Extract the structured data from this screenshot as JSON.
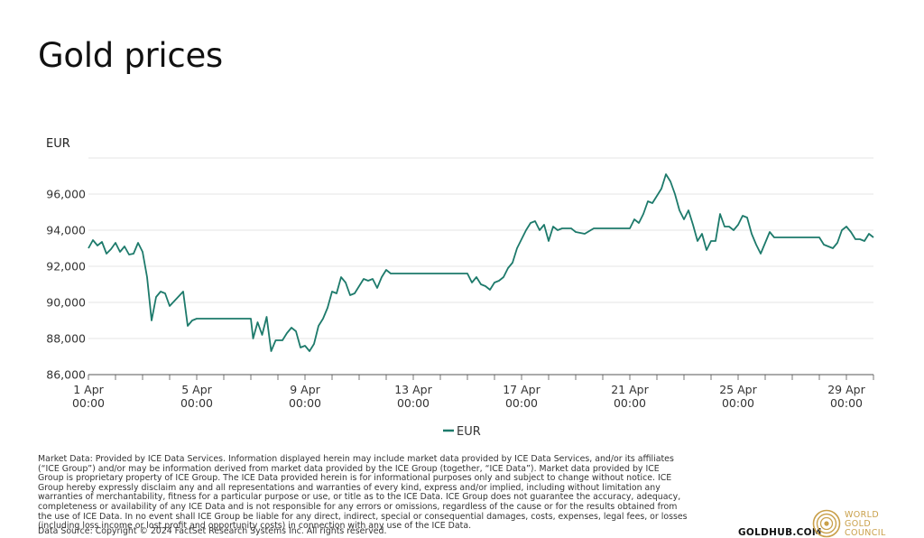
{
  "header": {
    "title": "Gold prices"
  },
  "chart_data": {
    "type": "line",
    "ylabel": "EUR",
    "ylim": [
      86000,
      98000
    ],
    "y_ticks": [
      "86,000",
      "88,000",
      "90,000",
      "92,000",
      "94,000",
      "96,000"
    ],
    "x_ticks": [
      {
        "day": "1 Apr",
        "time": "00:00"
      },
      {
        "day": "5 Apr",
        "time": "00:00"
      },
      {
        "day": "9 Apr",
        "time": "00:00"
      },
      {
        "day": "13 Apr",
        "time": "00:00"
      },
      {
        "day": "17 Apr",
        "time": "00:00"
      },
      {
        "day": "21 Apr",
        "time": "00:00"
      },
      {
        "day": "25 Apr",
        "time": "00:00"
      },
      {
        "day": "29 Apr",
        "time": "00:00"
      }
    ],
    "legend": "bottom-center",
    "grid": "horizontal",
    "series": [
      {
        "name": "EUR",
        "color": "#1d7a6b",
        "points": [
          [
            "2024-04-01 00:00",
            93000
          ],
          [
            "2024-04-01 04:00",
            93450
          ],
          [
            "2024-04-01 08:00",
            93150
          ],
          [
            "2024-04-01 12:00",
            93350
          ],
          [
            "2024-04-01 16:00",
            92700
          ],
          [
            "2024-04-01 20:00",
            92950
          ],
          [
            "2024-04-02 00:00",
            93300
          ],
          [
            "2024-04-02 04:00",
            92800
          ],
          [
            "2024-04-02 08:00",
            93100
          ],
          [
            "2024-04-02 12:00",
            92650
          ],
          [
            "2024-04-02 16:00",
            92700
          ],
          [
            "2024-04-02 20:00",
            93300
          ],
          [
            "2024-04-03 00:00",
            92800
          ],
          [
            "2024-04-03 04:00",
            91400
          ],
          [
            "2024-04-03 08:00",
            89000
          ],
          [
            "2024-04-03 12:00",
            90300
          ],
          [
            "2024-04-03 16:00",
            90600
          ],
          [
            "2024-04-03 20:00",
            90500
          ],
          [
            "2024-04-04 00:00",
            89800
          ],
          [
            "2024-04-04 06:00",
            90200
          ],
          [
            "2024-04-04 12:00",
            90600
          ],
          [
            "2024-04-04 16:00",
            88700
          ],
          [
            "2024-04-04 20:00",
            89000
          ],
          [
            "2024-04-05 00:00",
            89100
          ],
          [
            "2024-04-06 00:00",
            89100
          ],
          [
            "2024-04-07 00:00",
            89100
          ],
          [
            "2024-04-07 02:00",
            88000
          ],
          [
            "2024-04-07 06:00",
            88900
          ],
          [
            "2024-04-07 10:00",
            88200
          ],
          [
            "2024-04-07 14:00",
            89200
          ],
          [
            "2024-04-07 18:00",
            87300
          ],
          [
            "2024-04-07 22:00",
            87900
          ],
          [
            "2024-04-08 04:00",
            87900
          ],
          [
            "2024-04-08 08:00",
            88300
          ],
          [
            "2024-04-08 12:00",
            88600
          ],
          [
            "2024-04-08 16:00",
            88400
          ],
          [
            "2024-04-08 20:00",
            87500
          ],
          [
            "2024-04-09 00:00",
            87600
          ],
          [
            "2024-04-09 04:00",
            87300
          ],
          [
            "2024-04-09 08:00",
            87700
          ],
          [
            "2024-04-09 12:00",
            88700
          ],
          [
            "2024-04-09 16:00",
            89100
          ],
          [
            "2024-04-09 20:00",
            89700
          ],
          [
            "2024-04-10 00:00",
            90600
          ],
          [
            "2024-04-10 04:00",
            90500
          ],
          [
            "2024-04-10 08:00",
            91400
          ],
          [
            "2024-04-10 12:00",
            91100
          ],
          [
            "2024-04-10 16:00",
            90400
          ],
          [
            "2024-04-10 20:00",
            90500
          ],
          [
            "2024-04-11 00:00",
            90900
          ],
          [
            "2024-04-11 04:00",
            91300
          ],
          [
            "2024-04-11 08:00",
            91200
          ],
          [
            "2024-04-11 12:00",
            91300
          ],
          [
            "2024-04-11 16:00",
            90800
          ],
          [
            "2024-04-11 20:00",
            91400
          ],
          [
            "2024-04-12 00:00",
            91800
          ],
          [
            "2024-04-12 04:00",
            91600
          ],
          [
            "2024-04-13 00:00",
            91600
          ],
          [
            "2024-04-14 00:00",
            91600
          ],
          [
            "2024-04-15 00:00",
            91600
          ],
          [
            "2024-04-15 04:00",
            91100
          ],
          [
            "2024-04-15 08:00",
            91400
          ],
          [
            "2024-04-15 12:00",
            91000
          ],
          [
            "2024-04-15 16:00",
            90900
          ],
          [
            "2024-04-15 20:00",
            90700
          ],
          [
            "2024-04-16 00:00",
            91100
          ],
          [
            "2024-04-16 04:00",
            91200
          ],
          [
            "2024-04-16 08:00",
            91400
          ],
          [
            "2024-04-16 12:00",
            91900
          ],
          [
            "2024-04-16 16:00",
            92200
          ],
          [
            "2024-04-16 20:00",
            93000
          ],
          [
            "2024-04-17 00:00",
            93500
          ],
          [
            "2024-04-17 04:00",
            94000
          ],
          [
            "2024-04-17 08:00",
            94400
          ],
          [
            "2024-04-17 12:00",
            94500
          ],
          [
            "2024-04-17 16:00",
            94000
          ],
          [
            "2024-04-17 20:00",
            94300
          ],
          [
            "2024-04-18 00:00",
            93400
          ],
          [
            "2024-04-18 04:00",
            94200
          ],
          [
            "2024-04-18 08:00",
            94000
          ],
          [
            "2024-04-18 12:00",
            94100
          ],
          [
            "2024-04-18 20:00",
            94100
          ],
          [
            "2024-04-19 00:00",
            93900
          ],
          [
            "2024-04-19 08:00",
            93800
          ],
          [
            "2024-04-19 16:00",
            94100
          ],
          [
            "2024-04-20 00:00",
            94100
          ],
          [
            "2024-04-21 00:00",
            94100
          ],
          [
            "2024-04-21 04:00",
            94600
          ],
          [
            "2024-04-21 08:00",
            94400
          ],
          [
            "2024-04-21 12:00",
            94900
          ],
          [
            "2024-04-21 16:00",
            95600
          ],
          [
            "2024-04-21 20:00",
            95500
          ],
          [
            "2024-04-22 00:00",
            95900
          ],
          [
            "2024-04-22 04:00",
            96300
          ],
          [
            "2024-04-22 08:00",
            97100
          ],
          [
            "2024-04-22 12:00",
            96700
          ],
          [
            "2024-04-22 16:00",
            96000
          ],
          [
            "2024-04-22 20:00",
            95100
          ],
          [
            "2024-04-23 00:00",
            94600
          ],
          [
            "2024-04-23 04:00",
            95100
          ],
          [
            "2024-04-23 08:00",
            94300
          ],
          [
            "2024-04-23 12:00",
            93400
          ],
          [
            "2024-04-23 16:00",
            93800
          ],
          [
            "2024-04-23 20:00",
            92900
          ],
          [
            "2024-04-24 00:00",
            93400
          ],
          [
            "2024-04-24 04:00",
            93400
          ],
          [
            "2024-04-24 08:00",
            94900
          ],
          [
            "2024-04-24 12:00",
            94200
          ],
          [
            "2024-04-24 16:00",
            94200
          ],
          [
            "2024-04-24 20:00",
            94000
          ],
          [
            "2024-04-25 00:00",
            94300
          ],
          [
            "2024-04-25 04:00",
            94800
          ],
          [
            "2024-04-25 08:00",
            94700
          ],
          [
            "2024-04-25 12:00",
            93800
          ],
          [
            "2024-04-25 16:00",
            93200
          ],
          [
            "2024-04-25 20:00",
            92700
          ],
          [
            "2024-04-26 00:00",
            93300
          ],
          [
            "2024-04-26 04:00",
            93900
          ],
          [
            "2024-04-26 08:00",
            93600
          ],
          [
            "2024-04-27 00:00",
            93600
          ],
          [
            "2024-04-28 00:00",
            93600
          ],
          [
            "2024-04-28 04:00",
            93200
          ],
          [
            "2024-04-28 08:00",
            93100
          ],
          [
            "2024-04-28 12:00",
            93000
          ],
          [
            "2024-04-28 16:00",
            93300
          ],
          [
            "2024-04-28 20:00",
            94000
          ],
          [
            "2024-04-29 00:00",
            94200
          ],
          [
            "2024-04-29 04:00",
            93900
          ],
          [
            "2024-04-29 08:00",
            93500
          ],
          [
            "2024-04-29 12:00",
            93500
          ],
          [
            "2024-04-29 16:00",
            93400
          ],
          [
            "2024-04-29 20:00",
            93800
          ],
          [
            "2024-04-30 00:00",
            93600
          ]
        ]
      }
    ]
  },
  "footer": {
    "disclaimer": "Market Data: Provided by ICE Data Services. Information displayed herein may include market data provided by ICE Data Services, and/or its affiliates (“ICE Group”) and/or may be information derived from market data provided by the ICE Group (together, “ICE Data”). Market data provided by ICE Group is proprietary property of ICE Group. The ICE Data provided herein is for informational purposes only and subject to change without notice. ICE Group hereby expressly disclaim any and all representations and warranties of every kind, express and/or implied, including without limitation any warranties of merchantability, fitness for a particular purpose or use, or title as to the ICE Data. ICE Group does not guarantee the accuracy, adequacy, completeness or availability of any ICE Data and is not responsible for any errors or omissions, regardless of the cause or for the results obtained from the use of ICE Data. In no event shall ICE Group be liable for any direct, indirect, special or consequential damages, costs, expenses, legal fees, or losses (including loss income or lost profit and opportunity costs) in connection with any use of the ICE Data.",
    "source": "Data Source: Copyright © 2024 FactSet Research Systems Inc. All rights reserved.",
    "goldhub": "GOLDHUB.COM",
    "logo_lines": [
      "WORLD",
      "GOLD",
      "COUNCIL"
    ],
    "logo_color": "#c9a04a"
  }
}
